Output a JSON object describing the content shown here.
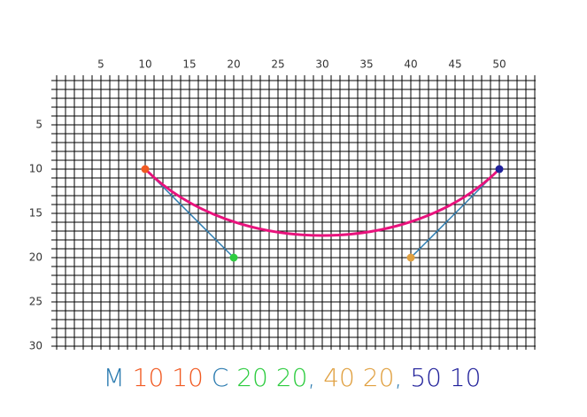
{
  "grid": {
    "xlim": [
      0,
      54
    ],
    "ylim": [
      0,
      30
    ],
    "xticks": [
      5,
      10,
      15,
      20,
      25,
      30,
      35,
      40,
      45,
      50
    ],
    "yticks": [
      5,
      10,
      15,
      20,
      25,
      30
    ]
  },
  "path": {
    "move_command": "M",
    "curve_command": "C",
    "separator": ",",
    "command_color": "#2b7bb0",
    "curve_color": "#e8127c",
    "points": [
      {
        "x": 10,
        "y": 10,
        "color": "#f15a22"
      },
      {
        "x": 20,
        "y": 20,
        "color": "#2ecc40"
      },
      {
        "x": 40,
        "y": 20,
        "color": "#e0a040"
      },
      {
        "x": 50,
        "y": 10,
        "color": "#1f1f9a"
      }
    ]
  }
}
